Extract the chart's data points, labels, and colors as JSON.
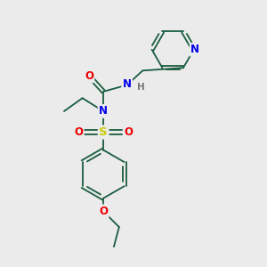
{
  "bg_color": "#ebebeb",
  "atom_colors": {
    "C": "#1a5c40",
    "N": "#0000ee",
    "O": "#ee0000",
    "S": "#cccc00",
    "H": "#777777"
  },
  "bond_color": "#1a5c40",
  "lw": 1.3
}
